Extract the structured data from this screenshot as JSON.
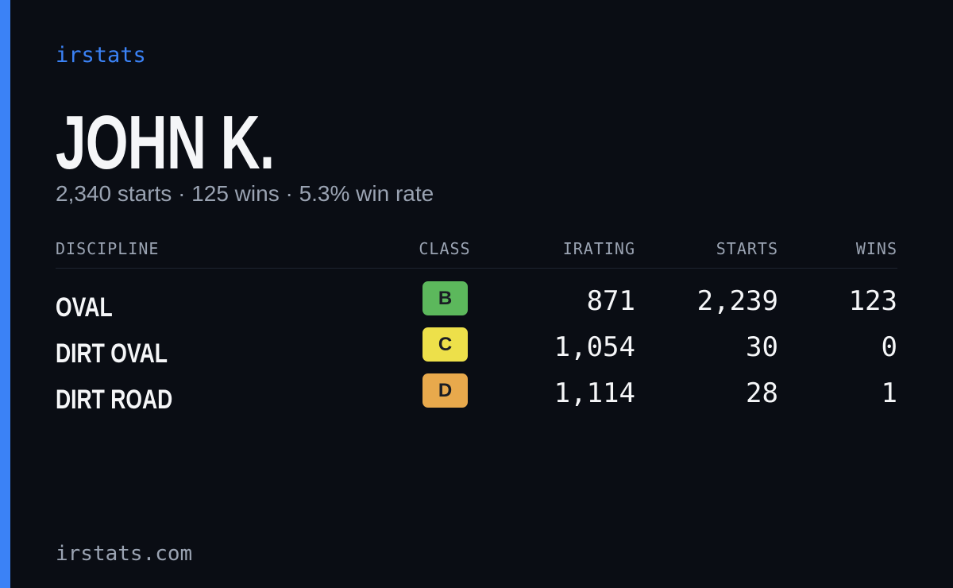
{
  "header": {
    "brand": "irstats",
    "name": "JOHN K.",
    "summary": "2,340 starts · 125 wins · 5.3% win rate"
  },
  "table": {
    "columns": [
      "DISCIPLINE",
      "CLASS",
      "IRATING",
      "STARTS",
      "WINS"
    ],
    "rows": [
      {
        "discipline": "OVAL",
        "class": "B",
        "class_color": "#5cb85c",
        "irating": "871",
        "starts": "2,239",
        "wins": "123"
      },
      {
        "discipline": "DIRT OVAL",
        "class": "C",
        "class_color": "#ede04a",
        "irating": "1,054",
        "starts": "30",
        "wins": "0"
      },
      {
        "discipline": "DIRT ROAD",
        "class": "D",
        "class_color": "#e8a94c",
        "irating": "1,114",
        "starts": "28",
        "wins": "1"
      }
    ]
  },
  "footer": {
    "site": "irstats.com"
  }
}
